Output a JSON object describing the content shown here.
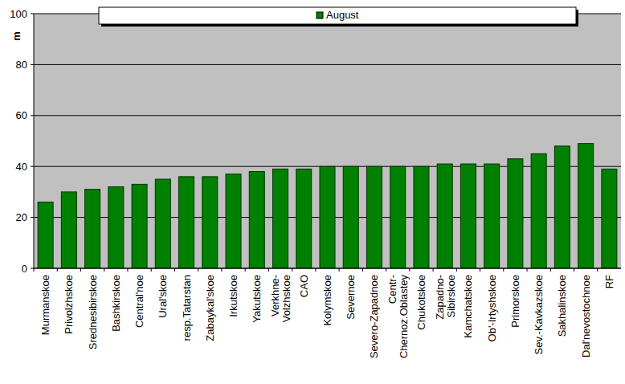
{
  "chart_data": {
    "type": "bar",
    "y_label": "m",
    "categories": [
      "Murmanskoe",
      "Privolzhskoe",
      "Srednesibirskoe",
      "Bashkirskoe",
      "Central'noe",
      "Ural'skoe",
      "resp.Tatarstan",
      "Zabaykal'skoe",
      "Irkutskoe",
      "Yakutskoe",
      "Verkhne-Volzhskoe",
      "CAO",
      "Kolymskoe",
      "Severnoe",
      "Severo-Zapadnoe",
      "Centr-Chernoz.Oblastey",
      "Chukotskoe",
      "Zapadno-Sibirskoe",
      "Kamchatskoe",
      "Ob'-Irtyshskoe",
      "Primorskoe",
      "Sev.-Kavkazskoe",
      "Sakhalinskoe",
      "Dal'nevostochnoe",
      "RF"
    ],
    "series": [
      {
        "name": "August",
        "color": "#008000",
        "values": [
          26,
          30,
          31,
          32,
          33,
          35,
          36,
          36,
          37,
          38,
          39,
          39,
          40,
          40,
          40,
          40,
          40,
          41,
          41,
          41,
          43,
          45,
          48,
          49,
          39
        ]
      }
    ],
    "ylim": [
      0,
      100
    ],
    "yticks": [
      0,
      20,
      40,
      60,
      80,
      100
    ],
    "grid": true,
    "legend": "top"
  }
}
